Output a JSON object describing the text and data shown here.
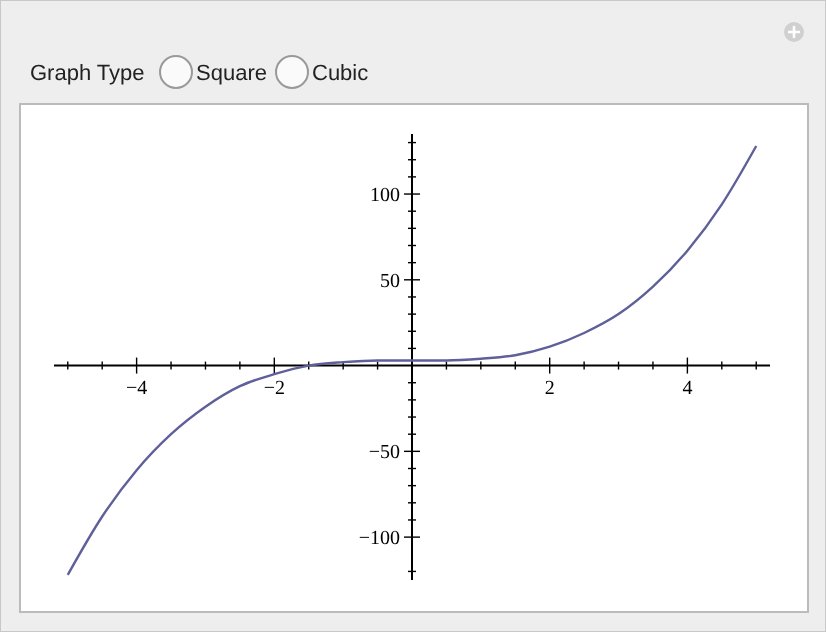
{
  "chart_data": {
    "type": "line",
    "annotations": [
      "Graph Type",
      "Square",
      "Cubic"
    ],
    "xlim": [
      -5.2,
      5.2
    ],
    "ylim": [
      -125,
      135
    ],
    "xticks": [
      {
        "value": -5,
        "label": null
      },
      {
        "value": -4.5,
        "label": null
      },
      {
        "value": -4,
        "label": "−4"
      },
      {
        "value": -3.5,
        "label": null
      },
      {
        "value": -3,
        "label": null
      },
      {
        "value": -2.5,
        "label": null
      },
      {
        "value": -2,
        "label": "−2"
      },
      {
        "value": -1.5,
        "label": null
      },
      {
        "value": -1,
        "label": null
      },
      {
        "value": -0.5,
        "label": null
      },
      {
        "value": 0.5,
        "label": null
      },
      {
        "value": 1,
        "label": null
      },
      {
        "value": 1.5,
        "label": null
      },
      2,
      {
        "value": 2.5,
        "label": null
      },
      {
        "value": 3,
        "label": null
      },
      {
        "value": 3.5,
        "label": null
      },
      4,
      {
        "value": 4.5,
        "label": null
      },
      {
        "value": 5,
        "label": null
      }
    ],
    "yticks": [
      {
        "value": -120,
        "label": null
      },
      {
        "value": -100,
        "label": "−100"
      },
      {
        "value": -90,
        "label": null
      },
      {
        "value": -80,
        "label": null
      },
      {
        "value": -70,
        "label": null
      },
      {
        "value": -60,
        "label": null
      },
      {
        "value": -50,
        "label": "−50"
      },
      {
        "value": -40,
        "label": null
      },
      {
        "value": -30,
        "label": null
      },
      {
        "value": -20,
        "label": null
      },
      {
        "value": -10,
        "label": null
      },
      {
        "value": 10,
        "label": null
      },
      {
        "value": 20,
        "label": null
      },
      {
        "value": 30,
        "label": null
      },
      {
        "value": 40,
        "label": null
      },
      50,
      {
        "value": 60,
        "label": null
      },
      {
        "value": 70,
        "label": null
      },
      {
        "value": 80,
        "label": null
      },
      {
        "value": 90,
        "label": null
      },
      100,
      {
        "value": 110,
        "label": null
      },
      {
        "value": 120,
        "label": null
      },
      {
        "value": 130,
        "label": null
      }
    ],
    "x": [
      -5,
      -4.5,
      -4,
      -3.5,
      -3,
      -2.5,
      -2,
      -1.5,
      -1,
      -0.5,
      0,
      0.5,
      1,
      1.5,
      2,
      2.5,
      3,
      3.5,
      4,
      4.5,
      5
    ],
    "series": [
      {
        "color": "#5f5f9a",
        "values": [
          -122,
          -88,
          -61,
          -40,
          -24,
          -12,
          -5,
          0,
          2,
          3,
          3,
          3,
          4,
          6,
          11,
          19,
          30,
          46,
          67,
          94,
          128
        ]
      }
    ]
  }
}
